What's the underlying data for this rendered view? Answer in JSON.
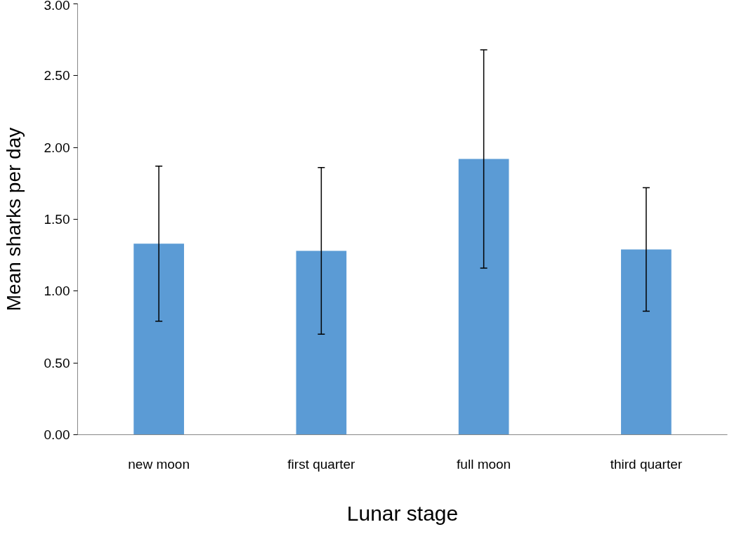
{
  "chart_data": {
    "type": "bar",
    "xlabel": "Lunar stage",
    "ylabel": "Mean sharks per day",
    "categories": [
      "new moon",
      "first quarter",
      "full moon",
      "third quarter"
    ],
    "values": [
      1.33,
      1.28,
      1.92,
      1.29
    ],
    "errors": [
      0.54,
      0.58,
      0.76,
      0.43
    ],
    "color": "#5b9bd5",
    "ylim": [
      0,
      3
    ],
    "yticks": [
      {
        "value": 0,
        "label": "0.00"
      },
      {
        "value": 0.5,
        "label": "0.50"
      },
      {
        "value": 1,
        "label": "1.00"
      },
      {
        "value": 1.5,
        "label": "1.50"
      },
      {
        "value": 2,
        "label": "2.00"
      },
      {
        "value": 2.5,
        "label": "2.50"
      },
      {
        "value": 3,
        "label": "3.00"
      }
    ],
    "grid": false
  }
}
